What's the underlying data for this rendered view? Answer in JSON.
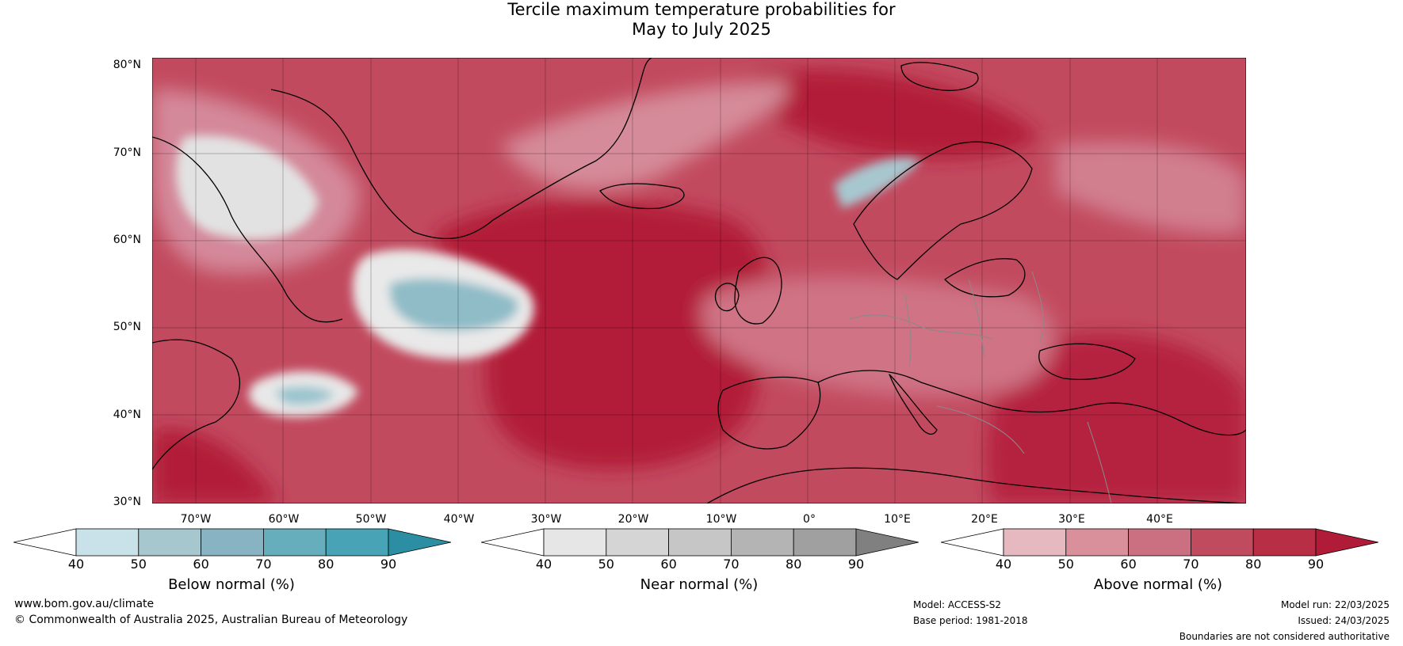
{
  "title_line1": "Tercile maximum temperature probabilities for",
  "title_line2": "May to July 2025",
  "lat_labels": [
    "80°N",
    "70°N",
    "60°N",
    "50°N",
    "40°N",
    "30°N"
  ],
  "lon_labels": [
    "70°W",
    "60°W",
    "50°W",
    "40°W",
    "30°W",
    "20°W",
    "10°W",
    "0°",
    "10°E",
    "20°E",
    "30°E",
    "40°E"
  ],
  "colorbars": [
    {
      "title": "Below normal (%)",
      "ticks": [
        "40",
        "50",
        "60",
        "70",
        "80",
        "90"
      ],
      "colors": [
        "#ffffff",
        "#c9e1e8",
        "#a7c7cf",
        "#88b3c2",
        "#66aebb",
        "#47a3b5",
        "#2b8ea3"
      ]
    },
    {
      "title": "Near normal (%)",
      "ticks": [
        "40",
        "50",
        "60",
        "70",
        "80",
        "90"
      ],
      "colors": [
        "#ffffff",
        "#e6e6e6",
        "#d5d5d5",
        "#c6c6c6",
        "#b4b4b4",
        "#a0a0a0",
        "#808080"
      ]
    },
    {
      "title": "Above normal (%)",
      "ticks": [
        "40",
        "50",
        "60",
        "70",
        "80",
        "90"
      ],
      "colors": [
        "#ffffff",
        "#e6b9c1",
        "#d9909b",
        "#cb7080",
        "#c04a5e",
        "#b72e45",
        "#b01b38"
      ]
    }
  ],
  "footer": {
    "website": "www.bom.gov.au/climate",
    "copyright": "© Commonwealth of Australia 2025, Australian Bureau of Meteorology",
    "model": "Model: ACCESS-S2",
    "base_period": "Base period: 1981-2018",
    "model_run": "Model run: 22/03/2025",
    "issued": "Issued: 24/03/2025",
    "disclaimer": "Boundaries are not considered authoritative"
  }
}
